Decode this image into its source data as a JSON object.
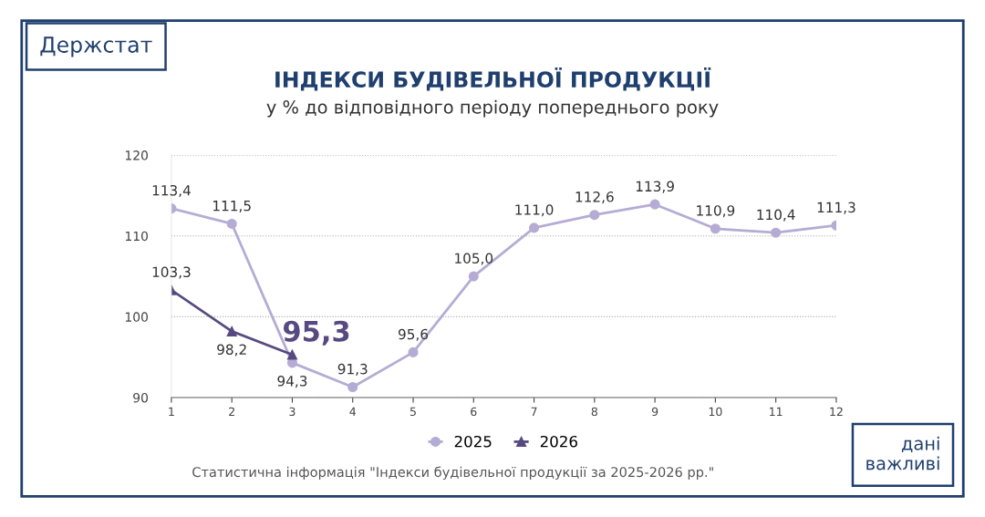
{
  "chart_data": {
    "type": "line",
    "title": "ІНДЕКСИ БУДІВЕЛЬНОЇ ПРОДУКЦІЇ",
    "subtitle": "у % до відповідного періоду попереднього року",
    "x": [
      1,
      2,
      3,
      4,
      5,
      6,
      7,
      8,
      9,
      10,
      11,
      12
    ],
    "xlim": [
      1,
      12
    ],
    "xticks": [
      1,
      2,
      3,
      4,
      5,
      6,
      7,
      8,
      9,
      10,
      11,
      12
    ],
    "ylim": [
      90,
      120
    ],
    "yticks": [
      90,
      100,
      110,
      120
    ],
    "grid": "y",
    "legend": "bottom",
    "series": [
      {
        "name": "2025",
        "color": "#b4acd4",
        "marker": "circle",
        "values": [
          113.4,
          111.5,
          94.3,
          91.3,
          95.6,
          105.0,
          111.0,
          112.6,
          113.9,
          110.9,
          110.4,
          111.3
        ],
        "value_labels": [
          "113,4",
          "111,5",
          "94,3",
          "91,3",
          "95,6",
          "105,0",
          "111,0",
          "112,6",
          "113,9",
          "110,9",
          "110,4",
          "111,3"
        ]
      },
      {
        "name": "2026",
        "color": "#574a80",
        "marker": "triangle",
        "values": [
          103.3,
          98.2,
          95.3,
          null,
          null,
          null,
          null,
          null,
          null,
          null,
          null,
          null
        ],
        "value_labels": [
          "103,3",
          "98,2",
          "95,3",
          null,
          null,
          null,
          null,
          null,
          null,
          null,
          null,
          null
        ]
      }
    ],
    "annotations": [
      "Держстат",
      "дані\nважливі",
      "Статистична інформація \"Індекси будівельної продукції за 2025-2026 рр.\""
    ]
  }
}
